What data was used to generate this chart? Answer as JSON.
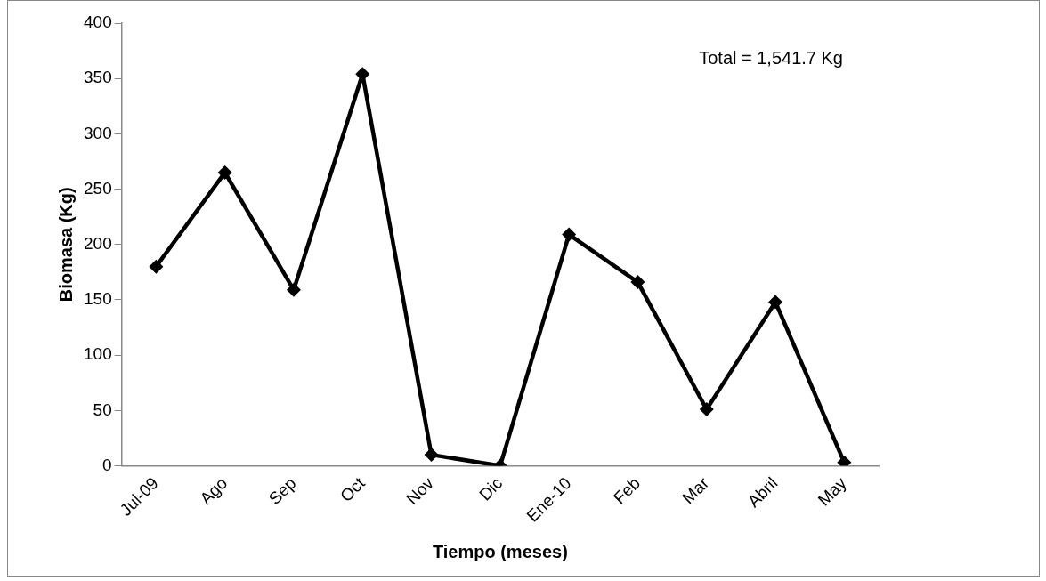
{
  "chart_data": {
    "type": "line",
    "xlabel": "Tiempo (meses)",
    "ylabel": "Biomasa (Kg)",
    "categories": [
      "Jul-09",
      "Ago",
      "Sep",
      "Oct",
      "Nov",
      "Dic",
      "Ene-10",
      "Feb",
      "Mar",
      "Abril",
      "May"
    ],
    "series": [
      {
        "color": "#000000",
        "values": [
          180,
          265,
          159,
          354,
          10,
          0,
          209,
          166,
          51,
          148,
          3
        ]
      }
    ],
    "ylim": [
      0,
      400
    ],
    "yticks": [
      0,
      50,
      100,
      150,
      200,
      250,
      300,
      350,
      400
    ],
    "grid": false,
    "legend": false,
    "marker": "diamond",
    "line_style": "solid",
    "annotations": [
      "Total = 1,541.7 Kg"
    ]
  }
}
